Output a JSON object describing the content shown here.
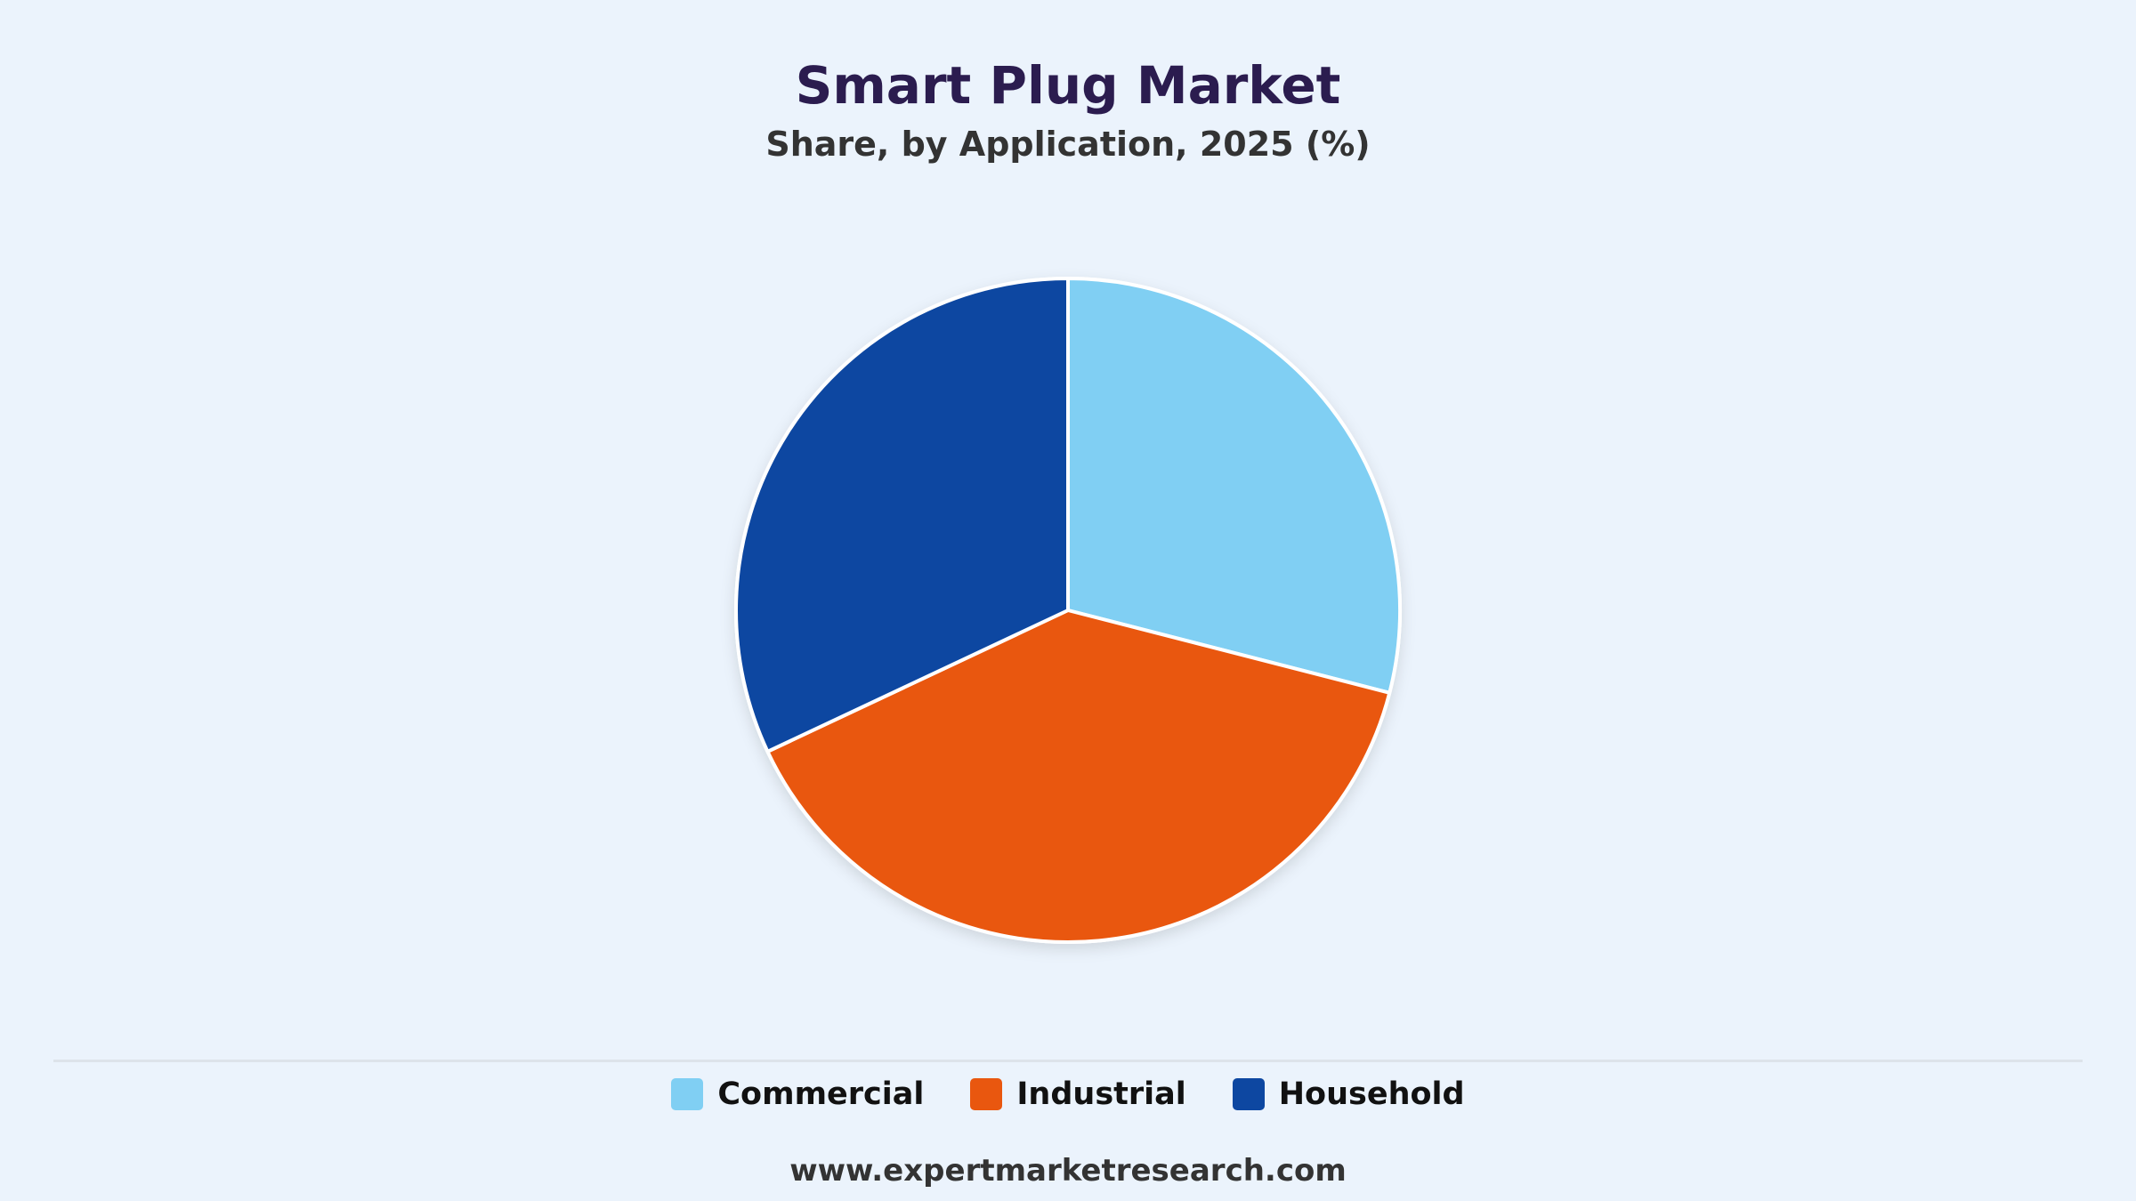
{
  "chart_data": {
    "type": "pie",
    "title": "Smart Plug Market",
    "subtitle": "Share, by Application, 2025 (%)",
    "slices": [
      {
        "label": "Commercial",
        "value": 29,
        "color": "#80cff3"
      },
      {
        "label": "Industrial",
        "value": 39,
        "color": "#e9570f"
      },
      {
        "label": "Household",
        "value": 32,
        "color": "#0d47a1"
      }
    ],
    "legend_position": "bottom-center",
    "start_angle_deg": 0,
    "direction": "clockwise"
  },
  "footer": {
    "source": "www.expertmarketresearch.com"
  }
}
